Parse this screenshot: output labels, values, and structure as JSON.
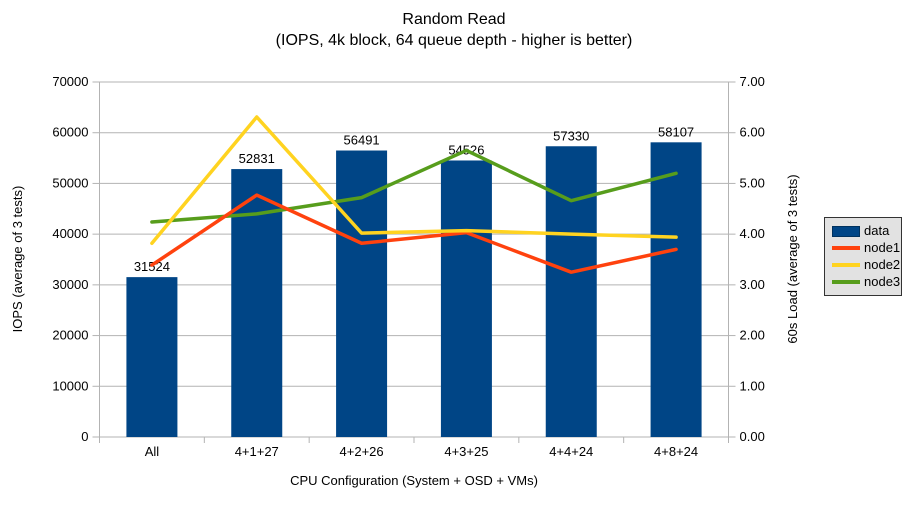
{
  "title": "Random Read",
  "subtitle": "(IOPS, 4k block, 64 queue depth - higher is better)",
  "axes": {
    "left_label": "IOPS (average of 3 tests)",
    "right_label": "60s Load (average of 3 tests)",
    "x_label": "CPU Configuration (System + OSD + VMs)"
  },
  "chart_data": {
    "type": "bar",
    "subtype": "bar-with-line-overlay",
    "categories": [
      "All",
      "4+1+27",
      "4+2+26",
      "4+3+25",
      "4+4+24",
      "4+8+24"
    ],
    "bar_series": {
      "name": "data",
      "axis": "left",
      "color": "#004586",
      "values": [
        31524,
        52831,
        56491,
        54526,
        57330,
        58107
      ],
      "value_labels": [
        "31524",
        "52831",
        "56491",
        "54526",
        "57330",
        "58107"
      ]
    },
    "line_series": [
      {
        "name": "node1",
        "axis": "right",
        "color": "#ff420e",
        "values": [
          3.39,
          4.77,
          3.82,
          4.03,
          3.25,
          3.7
        ]
      },
      {
        "name": "node2",
        "axis": "right",
        "color": "#ffd320",
        "values": [
          3.82,
          6.31,
          4.02,
          4.07,
          4.0,
          3.94
        ]
      },
      {
        "name": "node3",
        "axis": "right",
        "color": "#579d1c",
        "values": [
          4.24,
          4.4,
          4.72,
          5.65,
          4.66,
          5.2
        ]
      }
    ],
    "left_axis": {
      "min": 0,
      "max": 70000,
      "step": 10000,
      "tick_labels": [
        "0",
        "10000",
        "20000",
        "30000",
        "40000",
        "50000",
        "60000",
        "70000"
      ]
    },
    "right_axis": {
      "min": 0,
      "max": 7,
      "step": 1,
      "tick_labels": [
        "0.00",
        "1.00",
        "2.00",
        "3.00",
        "4.00",
        "5.00",
        "6.00",
        "7.00"
      ]
    },
    "grid": "horizontal",
    "legend_position": "right",
    "title": "Random Read",
    "xlabel": "CPU Configuration (System + OSD + VMs)",
    "ylabel_left": "IOPS (average of 3 tests)",
    "ylabel_right": "60s Load (average of 3 tests)"
  },
  "legend": {
    "items": [
      {
        "label": "data",
        "color": "#004586",
        "type": "bar"
      },
      {
        "label": "node1",
        "color": "#ff420e",
        "type": "line"
      },
      {
        "label": "node2",
        "color": "#ffd320",
        "type": "line"
      },
      {
        "label": "node3",
        "color": "#579d1c",
        "type": "line"
      }
    ]
  },
  "colors": {
    "background": "#ffffff",
    "grid": "#b3b3b3",
    "axis": "#b3b3b3",
    "text": "#000000",
    "bar": "#004586",
    "node1": "#ff420e",
    "node2": "#ffd320",
    "node3": "#579d1c",
    "legend_bg": "#e2e2e2",
    "legend_border": "#333333"
  }
}
